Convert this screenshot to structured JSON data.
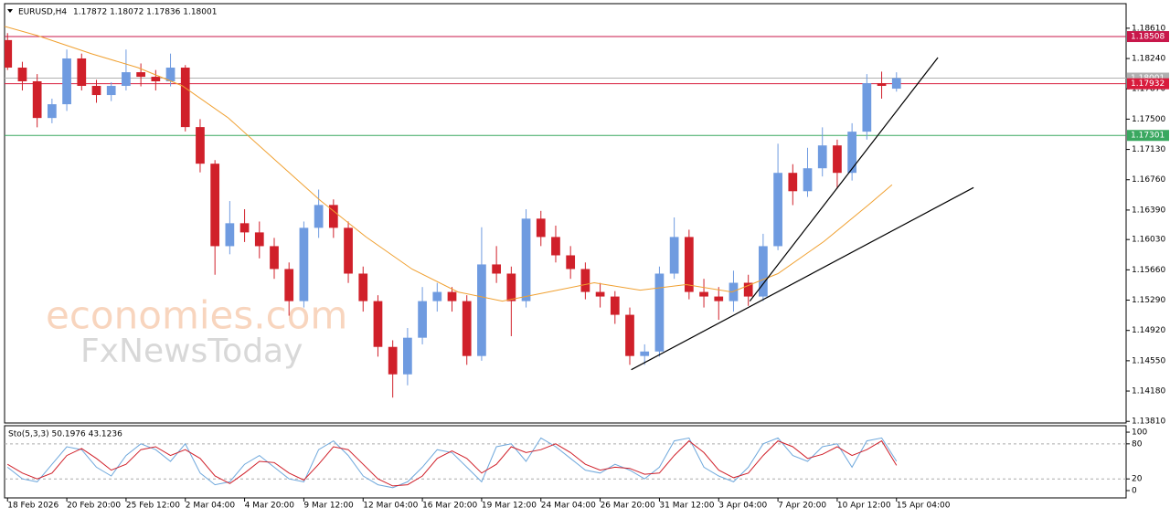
{
  "chart_data": [
    {
      "type": "candlestick",
      "symbol": "EURUSD,H4",
      "ohlc_label": "1.17872 1.18072 1.17836 1.18001",
      "watermark": [
        "economies.com",
        "FxNewsToday"
      ],
      "up_color": "#6f9be0",
      "down_color": "#d0202a",
      "open": [
        1.18465,
        1.18129,
        1.17962,
        1.17514,
        1.17682,
        1.18241,
        1.17906,
        1.17794,
        1.17906,
        1.18073,
        1.18017,
        1.17962,
        1.18129,
        1.17403,
        1.16956,
        1.15949,
        1.16229,
        1.16117,
        1.15949,
        1.1567,
        1.15278,
        1.16173,
        1.16452,
        1.16173,
        1.15614,
        1.15278,
        1.14719,
        1.14384,
        1.14831,
        1.15278,
        1.1539,
        1.15278,
        1.14608,
        1.15726,
        1.15614,
        1.15278,
        1.16285,
        1.16061,
        1.15837,
        1.1567,
        1.1539,
        1.15334,
        1.15111,
        1.14608,
        1.14663,
        1.15614,
        1.16061,
        1.1539,
        1.15334,
        1.15278,
        1.15502,
        1.15334,
        1.15949,
        1.16844,
        1.1662,
        1.169,
        1.17179,
        1.16844,
        1.17347,
        1.17939,
        1.17872
      ],
      "high": [
        1.1855,
        1.182,
        1.1805,
        1.1775,
        1.1835,
        1.183,
        1.1798,
        1.1795,
        1.1835,
        1.1818,
        1.181,
        1.183,
        1.1816,
        1.175,
        1.17,
        1.165,
        1.164,
        1.1625,
        1.1605,
        1.1575,
        1.1625,
        1.1664,
        1.1652,
        1.1625,
        1.157,
        1.1535,
        1.148,
        1.1495,
        1.1545,
        1.155,
        1.1545,
        1.1535,
        1.1618,
        1.1595,
        1.157,
        1.164,
        1.1638,
        1.162,
        1.1595,
        1.1575,
        1.155,
        1.154,
        1.152,
        1.1475,
        1.157,
        1.163,
        1.1615,
        1.1555,
        1.1545,
        1.1565,
        1.156,
        1.161,
        1.172,
        1.1695,
        1.1715,
        1.174,
        1.1725,
        1.1745,
        1.1805,
        1.1808,
        1.18072
      ],
      "low": [
        1.181,
        1.1785,
        1.174,
        1.1745,
        1.176,
        1.1785,
        1.177,
        1.1772,
        1.1785,
        1.179,
        1.1785,
        1.179,
        1.1735,
        1.1685,
        1.156,
        1.1585,
        1.16,
        1.158,
        1.1555,
        1.151,
        1.152,
        1.1605,
        1.1605,
        1.155,
        1.1515,
        1.146,
        1.141,
        1.1425,
        1.1475,
        1.1515,
        1.1515,
        1.145,
        1.1455,
        1.155,
        1.1485,
        1.152,
        1.1595,
        1.1575,
        1.1555,
        1.153,
        1.152,
        1.15,
        1.145,
        1.145,
        1.146,
        1.1555,
        1.153,
        1.152,
        1.1505,
        1.1515,
        1.1522,
        1.1528,
        1.159,
        1.1645,
        1.1655,
        1.168,
        1.1665,
        1.1675,
        1.1725,
        1.1775,
        1.17836
      ],
      "close": [
        1.18129,
        1.17962,
        1.17514,
        1.17682,
        1.18241,
        1.17906,
        1.17794,
        1.17906,
        1.18073,
        1.18017,
        1.17962,
        1.18129,
        1.17403,
        1.16956,
        1.15949,
        1.16229,
        1.16117,
        1.15949,
        1.1567,
        1.15278,
        1.16173,
        1.16452,
        1.16173,
        1.15614,
        1.15278,
        1.14719,
        1.14384,
        1.14831,
        1.15278,
        1.1539,
        1.15278,
        1.14608,
        1.15726,
        1.15614,
        1.15278,
        1.16285,
        1.16061,
        1.15837,
        1.1567,
        1.1539,
        1.15334,
        1.15111,
        1.14608,
        1.14663,
        1.15614,
        1.16061,
        1.1539,
        1.15334,
        1.15278,
        1.15502,
        1.15334,
        1.15949,
        1.16844,
        1.1662,
        1.169,
        1.17179,
        1.16844,
        1.17347,
        1.17939,
        1.17906,
        1.18001
      ],
      "moving_average": {
        "color": "#f0a030",
        "x": [
          -0.2,
          2.0,
          5.7,
          8.8,
          11.8,
          14.9,
          18.0,
          21.1,
          24.2,
          27.3,
          30.4,
          33.4,
          36.5,
          39.6,
          42.7,
          45.8,
          48.9,
          52.0,
          55.1,
          58.1,
          59.7
        ],
        "values": [
          1.18632,
          1.18521,
          1.18297,
          1.18129,
          1.17906,
          1.17514,
          1.17011,
          1.16508,
          1.16061,
          1.1567,
          1.1539,
          1.15278,
          1.1539,
          1.15502,
          1.15412,
          1.1548,
          1.1539,
          1.15614,
          1.16005,
          1.16452,
          1.16698
        ]
      },
      "trendlines": [
        {
          "x": [
            42.1,
            65.2
          ],
          "values": [
            1.1444,
            1.16665
          ],
          "color": "#000000"
        },
        {
          "x": [
            50.1,
            62.8
          ],
          "values": [
            1.15278,
            1.18252
          ],
          "color": "#000000"
        }
      ],
      "hlines": [
        {
          "value": 1.18508,
          "color": "#c8174a"
        },
        {
          "value": 1.18001,
          "color": "#b0b0b0"
        },
        {
          "value": 1.17932,
          "color": "#d81b3c"
        },
        {
          "value": 1.17301,
          "color": "#3aa860"
        }
      ],
      "xlim": [
        -0.2,
        75.5
      ],
      "xticks": [
        {
          "value": 0,
          "label": "18 Feb 2026"
        },
        {
          "value": 4,
          "label": "20 Feb 20:00"
        },
        {
          "value": 8,
          "label": "25 Feb 12:00"
        },
        {
          "value": 12,
          "label": "2 Mar 04:00"
        },
        {
          "value": 16,
          "label": "4 Mar 20:00"
        },
        {
          "value": 20,
          "label": "9 Mar 12:00"
        },
        {
          "value": 24,
          "label": "12 Mar 04:00"
        },
        {
          "value": 28,
          "label": "16 Mar 20:00"
        },
        {
          "value": 32,
          "label": "19 Mar 12:00"
        },
        {
          "value": 36,
          "label": "24 Mar 04:00"
        },
        {
          "value": 40,
          "label": "26 Mar 20:00"
        },
        {
          "value": 44,
          "label": "31 Mar 12:00"
        },
        {
          "value": 48,
          "label": "3 Apr 04:00"
        },
        {
          "value": 52,
          "label": "7 Apr 20:00"
        },
        {
          "value": 56,
          "label": "10 Apr 12:00"
        },
        {
          "value": 60,
          "label": "15 Apr 04:00"
        }
      ],
      "ylim": [
        1.1379,
        1.1891
      ],
      "yticks": [
        {
          "value": 1.1861,
          "label": "1.18610"
        },
        {
          "value": 1.1824,
          "label": "1.18240"
        },
        {
          "value": 1.1787,
          "label": "1.17870"
        },
        {
          "value": 1.175,
          "label": "1.17500"
        },
        {
          "value": 1.1713,
          "label": "1.17130"
        },
        {
          "value": 1.1676,
          "label": "1.16760"
        },
        {
          "value": 1.1639,
          "label": "1.16390"
        },
        {
          "value": 1.1603,
          "label": "1.16030"
        },
        {
          "value": 1.1566,
          "label": "1.15660"
        },
        {
          "value": 1.1529,
          "label": "1.15290"
        },
        {
          "value": 1.1492,
          "label": "1.14920"
        },
        {
          "value": 1.1455,
          "label": "1.14550"
        },
        {
          "value": 1.1418,
          "label": "1.14180"
        },
        {
          "value": 1.1381,
          "label": "1.13810"
        }
      ]
    },
    {
      "type": "stochastic",
      "title": "Sto(5,3,3) 50.1976 43.1236",
      "series": [
        {
          "name": "main",
          "color": "#6fa8dc",
          "values": [
            40,
            20,
            15,
            45,
            75,
            70,
            40,
            25,
            60,
            80,
            70,
            50,
            80,
            30,
            10,
            15,
            45,
            60,
            40,
            20,
            15,
            70,
            85,
            60,
            25,
            10,
            5,
            15,
            40,
            70,
            65,
            40,
            15,
            75,
            80,
            50,
            90,
            75,
            55,
            35,
            30,
            45,
            35,
            20,
            40,
            85,
            90,
            40,
            25,
            15,
            40,
            80,
            90,
            60,
            50,
            75,
            80,
            40,
            85,
            90,
            50.1976
          ]
        },
        {
          "name": "signal",
          "color": "#d0202a",
          "values": [
            45,
            30,
            20,
            30,
            60,
            72,
            55,
            35,
            45,
            70,
            75,
            60,
            70,
            55,
            25,
            12,
            30,
            50,
            48,
            30,
            18,
            45,
            75,
            70,
            45,
            20,
            8,
            10,
            25,
            55,
            68,
            55,
            30,
            45,
            75,
            65,
            70,
            80,
            65,
            45,
            35,
            40,
            38,
            28,
            30,
            60,
            85,
            65,
            35,
            22,
            30,
            60,
            85,
            75,
            55,
            62,
            75,
            60,
            70,
            85,
            43.1236
          ]
        }
      ],
      "levels": [
        20,
        80
      ],
      "ylim": [
        -12.5,
        111
      ],
      "yticks": [
        100,
        80,
        20,
        0
      ]
    }
  ]
}
